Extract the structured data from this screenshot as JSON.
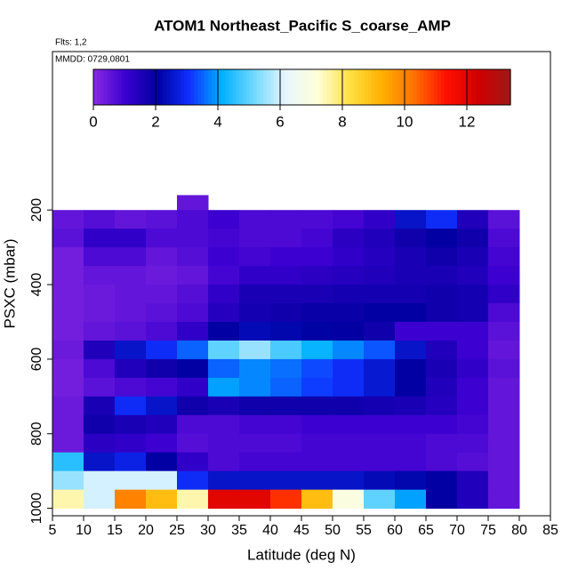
{
  "chart_data": {
    "type": "heatmap",
    "title": "ATOM1 Northeast_Pacific S_coarse_AMP",
    "subtitle": "Flts: 1,2",
    "annotation": "MMDD: 0729,0801",
    "x_label": "Latitude (deg N)",
    "y_label": "PSXC (mbar)",
    "x_edges": [
      5,
      10,
      15,
      20,
      25,
      30,
      35,
      40,
      45,
      50,
      55,
      60,
      65,
      70,
      75,
      80
    ],
    "y_edges": [
      160,
      200,
      250,
      300,
      350,
      400,
      450,
      500,
      550,
      600,
      650,
      700,
      750,
      800,
      850,
      900,
      950,
      1000
    ],
    "z": [
      [
        null,
        null,
        null,
        null,
        0.5,
        null,
        null,
        null,
        null,
        null,
        null,
        null,
        null,
        null,
        null
      ],
      [
        0.5,
        0.7,
        0.5,
        0.6,
        0.8,
        1,
        0.8,
        0.8,
        0.8,
        0.9,
        1.2,
        2.5,
        3,
        1.5,
        0.6
      ],
      [
        0.6,
        1.2,
        1.2,
        0.8,
        0.8,
        0.9,
        0.8,
        0.8,
        0.9,
        1.3,
        1.5,
        1.8,
        2,
        1.8,
        0.8
      ],
      [
        0.3,
        0.8,
        0.8,
        0.5,
        0.7,
        1,
        0.9,
        1,
        1,
        1.2,
        1.4,
        1.6,
        1.8,
        1.6,
        0.9
      ],
      [
        0.3,
        0.5,
        0.5,
        0.4,
        0.5,
        0.9,
        1.2,
        1.2,
        1.3,
        1.4,
        1.5,
        1.6,
        1.6,
        1.5,
        1
      ],
      [
        0.3,
        0.4,
        0.5,
        0.5,
        0.7,
        1.2,
        1.6,
        1.6,
        1.6,
        1.7,
        1.7,
        1.7,
        1.8,
        1.7,
        1.2
      ],
      [
        0.3,
        0.4,
        0.5,
        0.6,
        0.8,
        1.4,
        1.7,
        1.8,
        1.9,
        1.9,
        2,
        2,
        1.8,
        1.7,
        0.8
      ],
      [
        0.3,
        0.5,
        0.6,
        0.8,
        1.2,
        2,
        2.3,
        2.2,
        2.1,
        2,
        1.8,
        1,
        1,
        1,
        0.6
      ],
      [
        0.4,
        1.5,
        2.5,
        3,
        3.5,
        5,
        5.5,
        4.8,
        4.2,
        3.8,
        3.4,
        2.5,
        1.5,
        1,
        0.5
      ],
      [
        0.3,
        0.8,
        1.5,
        1.8,
        2,
        3.5,
        3.8,
        3.6,
        3.3,
        3,
        2.6,
        2,
        1.6,
        1.2,
        0.6
      ],
      [
        0.3,
        0.6,
        0.8,
        0.9,
        1.2,
        4,
        3.8,
        3.5,
        3.2,
        3,
        2.6,
        2,
        1.5,
        1,
        0.5
      ],
      [
        0.4,
        1.6,
        3,
        2.5,
        1.8,
        1.6,
        1.8,
        1.8,
        1.8,
        1.8,
        1.7,
        1.6,
        1.4,
        1,
        0.5
      ],
      [
        0.4,
        1.8,
        1.6,
        1.5,
        0.8,
        0.8,
        0.9,
        0.9,
        1,
        1,
        1,
        1,
        1,
        0.9,
        0.5
      ],
      [
        0.4,
        1.3,
        1.2,
        1,
        0.7,
        0.8,
        0.8,
        0.8,
        0.9,
        0.9,
        0.9,
        0.9,
        0.8,
        0.8,
        0.5
      ],
      [
        4.5,
        2.5,
        2.8,
        2,
        1.2,
        0.8,
        0.9,
        0.9,
        0.9,
        0.9,
        0.9,
        0.9,
        0.8,
        0.7,
        0.5
      ],
      [
        5.5,
        6,
        6,
        6,
        3,
        2.5,
        2.5,
        2.5,
        2.5,
        2.5,
        2.3,
        2.2,
        2,
        1.5,
        0.5
      ],
      [
        7.5,
        6,
        10,
        9,
        7.5,
        12,
        12,
        11,
        9,
        7,
        5,
        4,
        2,
        1.5,
        0.5
      ]
    ],
    "xlim": [
      5,
      85
    ],
    "xticks": [
      5,
      10,
      15,
      20,
      25,
      30,
      35,
      40,
      45,
      50,
      55,
      60,
      65,
      70,
      75,
      80,
      85
    ],
    "ylim": [
      1020,
      -225
    ],
    "yticks": [
      200,
      400,
      600,
      800,
      1000
    ],
    "clim": [
      0,
      13.4
    ],
    "cticks": [
      0,
      2,
      4,
      6,
      8,
      10,
      12
    ],
    "colorscale": [
      "#8a2be2",
      "#3a00d0",
      "#0000a0",
      "#1030ff",
      "#00b0ff",
      "#70d8ff",
      "#e8f6ff",
      "#ffffd8",
      "#ffe040",
      "#ffb000",
      "#ff7000",
      "#ff1000",
      "#d00000",
      "#a01818"
    ]
  }
}
